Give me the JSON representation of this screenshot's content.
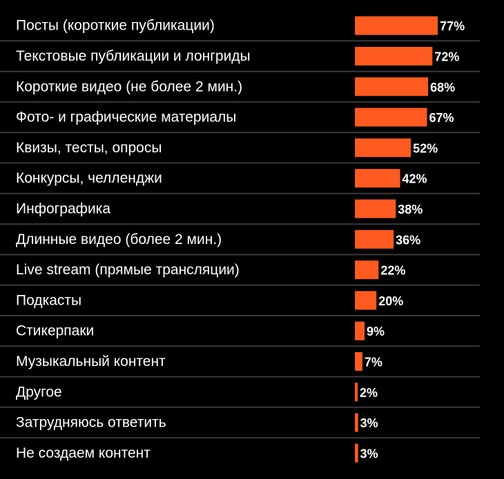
{
  "chart_data": {
    "type": "bar",
    "orientation": "horizontal",
    "categories": [
      "Посты (короткие публикации)",
      "Текстовые публикации и лонгриды",
      "Короткие видео (не более 2 мин.)",
      "Фото- и графические материалы",
      "Квизы, тесты, опросы",
      "Конкурсы, челленджи",
      "Инфографика",
      "Длинные видео (более 2 мин.)",
      "Live stream (прямые трансляции)",
      "Подкасты",
      "Стикерпаки",
      "Музыкальный контент",
      "Другое",
      "Затрудняюсь ответить",
      "Не создаем контент"
    ],
    "values": [
      77,
      72,
      68,
      67,
      52,
      42,
      38,
      36,
      22,
      20,
      9,
      7,
      2,
      3,
      3
    ],
    "value_labels": [
      "77%",
      "72%",
      "68%",
      "67%",
      "52%",
      "42%",
      "38%",
      "36%",
      "22%",
      "20%",
      "9%",
      "7%",
      "2%",
      "3%",
      "3%"
    ],
    "unit": "%",
    "xlim": [
      0,
      100
    ],
    "title": "",
    "xlabel": "",
    "ylabel": "",
    "grid": false,
    "colors": {
      "background": "#000000",
      "bar": "#FF5A1F",
      "text": "#FFFFFF",
      "separator": "#3A3A3A"
    }
  }
}
